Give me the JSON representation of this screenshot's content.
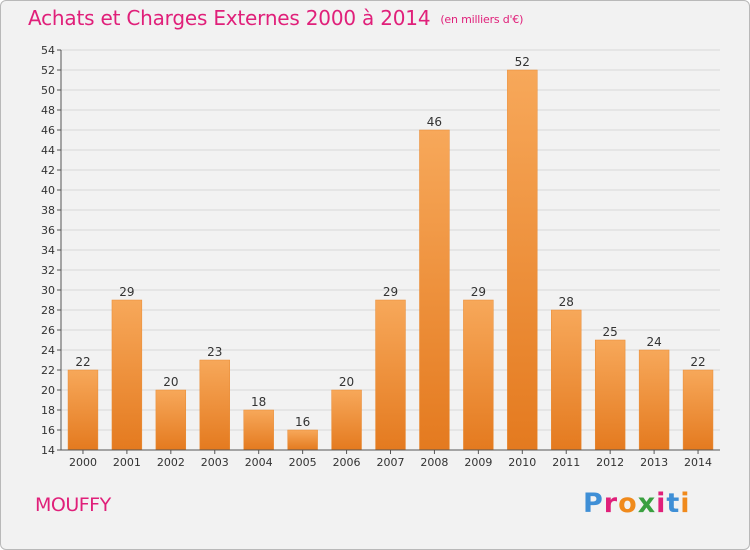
{
  "header": {
    "title": "Achats et Charges Externes 2000 à 2014",
    "unit": "(en milliers d'€)"
  },
  "footer": {
    "commune": "MOUFFY",
    "brand": "Proxiti"
  },
  "colors": {
    "title": "#e0207a",
    "bar_light": "#f7a85a",
    "bar_dark": "#e47a1f",
    "brand": [
      "#3f8fd6",
      "#e0207a",
      "#f08a1c",
      "#3aa040",
      "#e0207a",
      "#3f8fd6",
      "#f08a1c"
    ]
  },
  "chart_data": {
    "type": "bar",
    "categories": [
      "2000",
      "2001",
      "2002",
      "2003",
      "2004",
      "2005",
      "2006",
      "2007",
      "2008",
      "2009",
      "2010",
      "2011",
      "2012",
      "2013",
      "2014"
    ],
    "values": [
      22,
      29,
      20,
      23,
      18,
      16,
      20,
      29,
      46,
      29,
      52,
      28,
      25,
      24,
      22
    ],
    "ylim": [
      14,
      54
    ],
    "ytick_step": 2,
    "grid": true,
    "data_labels": true
  }
}
